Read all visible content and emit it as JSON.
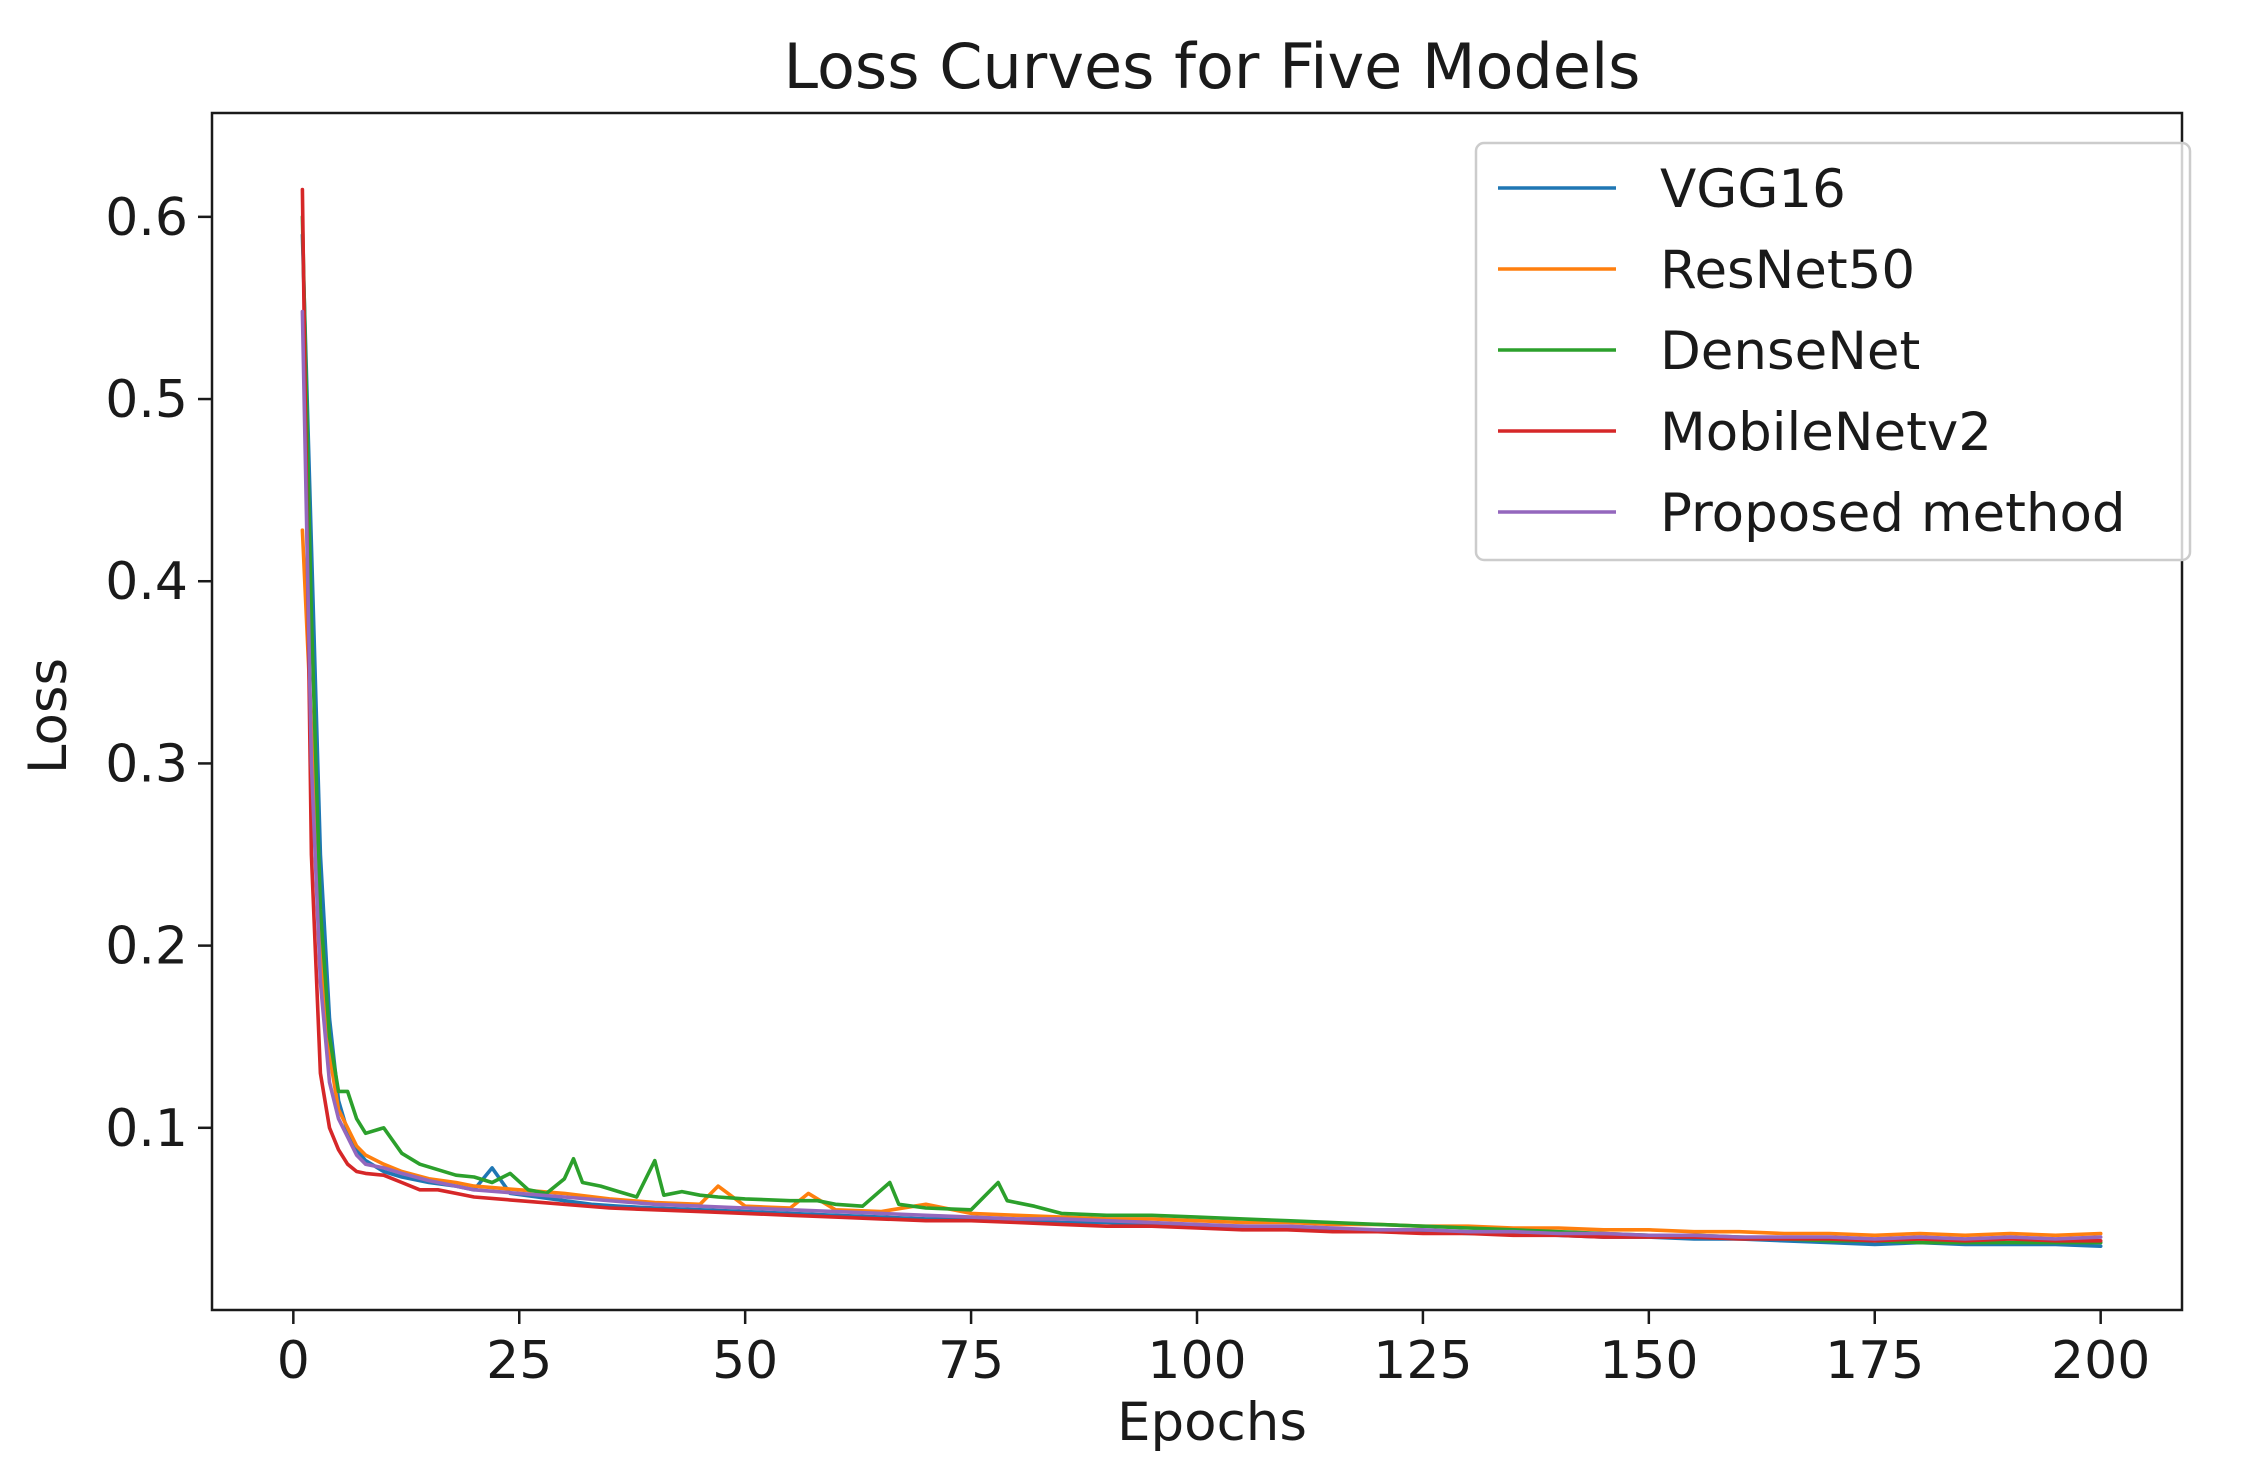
{
  "chart_data": {
    "type": "line",
    "title": "Loss Curves for Five Models",
    "xlabel": "Epochs",
    "ylabel": "Loss",
    "xlim": [
      -9,
      209
    ],
    "ylim": [
      -0.0,
      0.657
    ],
    "xticks": [
      0,
      25,
      50,
      75,
      100,
      125,
      150,
      175,
      200
    ],
    "xtick_labels": [
      "0",
      "25",
      "50",
      "75",
      "100",
      "125",
      "150",
      "175",
      "200"
    ],
    "yticks": [
      0.1,
      0.2,
      0.3,
      0.4,
      0.5,
      0.6
    ],
    "ytick_labels": [
      "0.1",
      "0.2",
      "0.3",
      "0.4",
      "0.5",
      "0.6"
    ],
    "grid": false,
    "legend_position": "top-right",
    "series": [
      {
        "name": "VGG16",
        "color": "#1f77b4",
        "points": [
          [
            1,
            0.59
          ],
          [
            2,
            0.42
          ],
          [
            3,
            0.25
          ],
          [
            4,
            0.16
          ],
          [
            5,
            0.115
          ],
          [
            6,
            0.098
          ],
          [
            7,
            0.088
          ],
          [
            8,
            0.082
          ],
          [
            10,
            0.076
          ],
          [
            12,
            0.073
          ],
          [
            15,
            0.07
          ],
          [
            18,
            0.068
          ],
          [
            20,
            0.066
          ],
          [
            22,
            0.078
          ],
          [
            24,
            0.064
          ],
          [
            27,
            0.062
          ],
          [
            30,
            0.06
          ],
          [
            33,
            0.058
          ],
          [
            36,
            0.057
          ],
          [
            40,
            0.056
          ],
          [
            45,
            0.055
          ],
          [
            50,
            0.054
          ],
          [
            55,
            0.053
          ],
          [
            60,
            0.052
          ],
          [
            65,
            0.051
          ],
          [
            70,
            0.05
          ],
          [
            75,
            0.05
          ],
          [
            80,
            0.049
          ],
          [
            85,
            0.048
          ],
          [
            90,
            0.048
          ],
          [
            95,
            0.047
          ],
          [
            100,
            0.046
          ],
          [
            105,
            0.046
          ],
          [
            110,
            0.045
          ],
          [
            115,
            0.044
          ],
          [
            120,
            0.044
          ],
          [
            125,
            0.043
          ],
          [
            130,
            0.042
          ],
          [
            135,
            0.042
          ],
          [
            140,
            0.041
          ],
          [
            145,
            0.04
          ],
          [
            150,
            0.04
          ],
          [
            155,
            0.039
          ],
          [
            160,
            0.039
          ],
          [
            165,
            0.038
          ],
          [
            170,
            0.037
          ],
          [
            175,
            0.036
          ],
          [
            180,
            0.037
          ],
          [
            185,
            0.036
          ],
          [
            190,
            0.036
          ],
          [
            195,
            0.036
          ],
          [
            200,
            0.035
          ]
        ]
      },
      {
        "name": "ResNet50",
        "color": "#ff7f0e",
        "points": [
          [
            1,
            0.428
          ],
          [
            2,
            0.32
          ],
          [
            3,
            0.2
          ],
          [
            4,
            0.14
          ],
          [
            5,
            0.11
          ],
          [
            6,
            0.1
          ],
          [
            7,
            0.09
          ],
          [
            8,
            0.085
          ],
          [
            10,
            0.08
          ],
          [
            12,
            0.076
          ],
          [
            15,
            0.072
          ],
          [
            18,
            0.07
          ],
          [
            20,
            0.068
          ],
          [
            25,
            0.066
          ],
          [
            30,
            0.064
          ],
          [
            35,
            0.061
          ],
          [
            40,
            0.059
          ],
          [
            45,
            0.058
          ],
          [
            47,
            0.068
          ],
          [
            50,
            0.057
          ],
          [
            55,
            0.056
          ],
          [
            57,
            0.064
          ],
          [
            60,
            0.055
          ],
          [
            65,
            0.054
          ],
          [
            70,
            0.058
          ],
          [
            75,
            0.053
          ],
          [
            80,
            0.052
          ],
          [
            85,
            0.051
          ],
          [
            90,
            0.05
          ],
          [
            95,
            0.05
          ],
          [
            100,
            0.049
          ],
          [
            105,
            0.048
          ],
          [
            110,
            0.048
          ],
          [
            115,
            0.047
          ],
          [
            120,
            0.047
          ],
          [
            125,
            0.046
          ],
          [
            130,
            0.046
          ],
          [
            135,
            0.045
          ],
          [
            140,
            0.045
          ],
          [
            145,
            0.044
          ],
          [
            150,
            0.044
          ],
          [
            155,
            0.043
          ],
          [
            160,
            0.043
          ],
          [
            165,
            0.042
          ],
          [
            170,
            0.042
          ],
          [
            175,
            0.041
          ],
          [
            180,
            0.042
          ],
          [
            185,
            0.041
          ],
          [
            190,
            0.042
          ],
          [
            195,
            0.041
          ],
          [
            200,
            0.042
          ]
        ]
      },
      {
        "name": "DenseNet",
        "color": "#2ca02c",
        "points": [
          [
            1,
            0.6
          ],
          [
            2,
            0.38
          ],
          [
            3,
            0.22
          ],
          [
            4,
            0.15
          ],
          [
            5,
            0.12
          ],
          [
            6,
            0.12
          ],
          [
            7,
            0.105
          ],
          [
            8,
            0.097
          ],
          [
            10,
            0.1
          ],
          [
            12,
            0.086
          ],
          [
            14,
            0.08
          ],
          [
            16,
            0.077
          ],
          [
            18,
            0.074
          ],
          [
            20,
            0.073
          ],
          [
            22,
            0.07
          ],
          [
            24,
            0.075
          ],
          [
            26,
            0.066
          ],
          [
            28,
            0.064
          ],
          [
            30,
            0.072
          ],
          [
            31,
            0.083
          ],
          [
            32,
            0.07
          ],
          [
            34,
            0.068
          ],
          [
            36,
            0.065
          ],
          [
            38,
            0.062
          ],
          [
            40,
            0.082
          ],
          [
            41,
            0.063
          ],
          [
            43,
            0.065
          ],
          [
            45,
            0.063
          ],
          [
            47,
            0.062
          ],
          [
            50,
            0.061
          ],
          [
            55,
            0.06
          ],
          [
            58,
            0.06
          ],
          [
            60,
            0.058
          ],
          [
            63,
            0.057
          ],
          [
            66,
            0.07
          ],
          [
            67,
            0.058
          ],
          [
            70,
            0.056
          ],
          [
            75,
            0.055
          ],
          [
            78,
            0.07
          ],
          [
            79,
            0.06
          ],
          [
            82,
            0.057
          ],
          [
            85,
            0.053
          ],
          [
            90,
            0.052
          ],
          [
            95,
            0.052
          ],
          [
            100,
            0.051
          ],
          [
            105,
            0.05
          ],
          [
            110,
            0.049
          ],
          [
            115,
            0.048
          ],
          [
            120,
            0.047
          ],
          [
            125,
            0.046
          ],
          [
            130,
            0.045
          ],
          [
            135,
            0.044
          ],
          [
            140,
            0.043
          ],
          [
            145,
            0.042
          ],
          [
            150,
            0.041
          ],
          [
            155,
            0.041
          ],
          [
            160,
            0.04
          ],
          [
            165,
            0.039
          ],
          [
            170,
            0.038
          ],
          [
            175,
            0.038
          ],
          [
            180,
            0.037
          ],
          [
            185,
            0.037
          ],
          [
            190,
            0.037
          ],
          [
            195,
            0.037
          ],
          [
            200,
            0.037
          ]
        ]
      },
      {
        "name": "MobileNetv2",
        "color": "#d62728",
        "points": [
          [
            1,
            0.615
          ],
          [
            2,
            0.25
          ],
          [
            3,
            0.13
          ],
          [
            4,
            0.1
          ],
          [
            5,
            0.088
          ],
          [
            6,
            0.08
          ],
          [
            7,
            0.076
          ],
          [
            8,
            0.075
          ],
          [
            10,
            0.074
          ],
          [
            12,
            0.07
          ],
          [
            14,
            0.066
          ],
          [
            16,
            0.066
          ],
          [
            18,
            0.064
          ],
          [
            20,
            0.062
          ],
          [
            25,
            0.06
          ],
          [
            30,
            0.058
          ],
          [
            35,
            0.056
          ],
          [
            40,
            0.055
          ],
          [
            45,
            0.054
          ],
          [
            50,
            0.053
          ],
          [
            55,
            0.052
          ],
          [
            60,
            0.051
          ],
          [
            65,
            0.05
          ],
          [
            70,
            0.049
          ],
          [
            75,
            0.049
          ],
          [
            80,
            0.048
          ],
          [
            85,
            0.047
          ],
          [
            90,
            0.046
          ],
          [
            95,
            0.046
          ],
          [
            100,
            0.045
          ],
          [
            105,
            0.044
          ],
          [
            110,
            0.044
          ],
          [
            115,
            0.043
          ],
          [
            120,
            0.043
          ],
          [
            125,
            0.042
          ],
          [
            130,
            0.042
          ],
          [
            135,
            0.041
          ],
          [
            140,
            0.041
          ],
          [
            145,
            0.04
          ],
          [
            150,
            0.04
          ],
          [
            155,
            0.04
          ],
          [
            160,
            0.039
          ],
          [
            165,
            0.039
          ],
          [
            170,
            0.039
          ],
          [
            175,
            0.038
          ],
          [
            180,
            0.039
          ],
          [
            185,
            0.038
          ],
          [
            190,
            0.039
          ],
          [
            195,
            0.038
          ],
          [
            200,
            0.038
          ]
        ]
      },
      {
        "name": "Proposed method",
        "color": "#9467bd",
        "points": [
          [
            1,
            0.548
          ],
          [
            2,
            0.3
          ],
          [
            3,
            0.18
          ],
          [
            4,
            0.125
          ],
          [
            5,
            0.105
          ],
          [
            6,
            0.095
          ],
          [
            7,
            0.085
          ],
          [
            8,
            0.08
          ],
          [
            10,
            0.078
          ],
          [
            12,
            0.075
          ],
          [
            15,
            0.071
          ],
          [
            18,
            0.068
          ],
          [
            20,
            0.066
          ],
          [
            25,
            0.064
          ],
          [
            30,
            0.062
          ],
          [
            35,
            0.06
          ],
          [
            40,
            0.058
          ],
          [
            45,
            0.057
          ],
          [
            50,
            0.056
          ],
          [
            55,
            0.055
          ],
          [
            60,
            0.054
          ],
          [
            65,
            0.053
          ],
          [
            70,
            0.052
          ],
          [
            75,
            0.051
          ],
          [
            80,
            0.05
          ],
          [
            85,
            0.05
          ],
          [
            90,
            0.049
          ],
          [
            95,
            0.048
          ],
          [
            100,
            0.047
          ],
          [
            105,
            0.046
          ],
          [
            110,
            0.046
          ],
          [
            115,
            0.045
          ],
          [
            120,
            0.044
          ],
          [
            125,
            0.044
          ],
          [
            130,
            0.043
          ],
          [
            135,
            0.043
          ],
          [
            140,
            0.042
          ],
          [
            145,
            0.042
          ],
          [
            150,
            0.041
          ],
          [
            155,
            0.041
          ],
          [
            160,
            0.04
          ],
          [
            165,
            0.04
          ],
          [
            170,
            0.04
          ],
          [
            175,
            0.039
          ],
          [
            180,
            0.04
          ],
          [
            185,
            0.039
          ],
          [
            190,
            0.04
          ],
          [
            195,
            0.039
          ],
          [
            200,
            0.04
          ]
        ]
      }
    ]
  }
}
